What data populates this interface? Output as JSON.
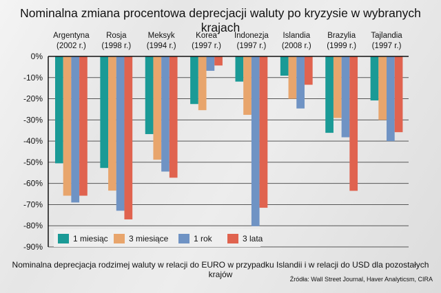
{
  "chart_data": {
    "type": "bar",
    "title": "Nominalna zmiana procentowa deprecjacji waluty po kryzysie w wybranych krajach",
    "subtitle": "Nominalna deprecjacja rodzimej waluty w relacji do EURO w przypadku Islandii i w relacji do USD dla pozostałych krajów",
    "source": "Źródła: Wall Street Journal, Haver Analyticsm, CIRA",
    "categories": [
      [
        "Argentyna",
        "(2002 r.)"
      ],
      [
        "Rosja",
        "(1998 r.)"
      ],
      [
        "Meksyk",
        "(1994 r.)"
      ],
      [
        "Korea",
        "(1997 r.)"
      ],
      [
        "Indonezja",
        "(1997 r.)"
      ],
      [
        "Islandia",
        "(2008 r.)"
      ],
      [
        "Brazylia",
        "(1999 r.)"
      ],
      [
        "Tajlandia",
        "(1997 r.)"
      ]
    ],
    "series": [
      {
        "name": "1 miesiąc",
        "color": "#1a9a96",
        "values": [
          -50.5,
          -52.7,
          -36.7,
          -22.5,
          -11.9,
          -9.1,
          -36.1,
          -20.8
        ]
      },
      {
        "name": "3 miesiące",
        "color": "#e8a56c",
        "values": [
          -65.8,
          -63.4,
          -48.8,
          -25.4,
          -27.6,
          -20.0,
          -29.1,
          -30.0
        ]
      },
      {
        "name": "1 rok",
        "color": "#6f93c4",
        "values": [
          -69.0,
          -72.9,
          -54.4,
          -6.8,
          -80.2,
          -24.6,
          -38.2,
          -40.0
        ]
      },
      {
        "name": "3 lata",
        "color": "#e0634f",
        "values": [
          -65.8,
          -77.0,
          -57.3,
          -4.3,
          -71.5,
          -13.4,
          -63.5,
          -35.8
        ]
      }
    ],
    "yticks": [
      "0%",
      "-10%",
      "-20%",
      "-30%",
      "-40%",
      "-50%",
      "-60%",
      "-70%",
      "-80%",
      "-90%"
    ],
    "ylim": [
      -90,
      0
    ],
    "grid": true,
    "legend": "bottom"
  }
}
